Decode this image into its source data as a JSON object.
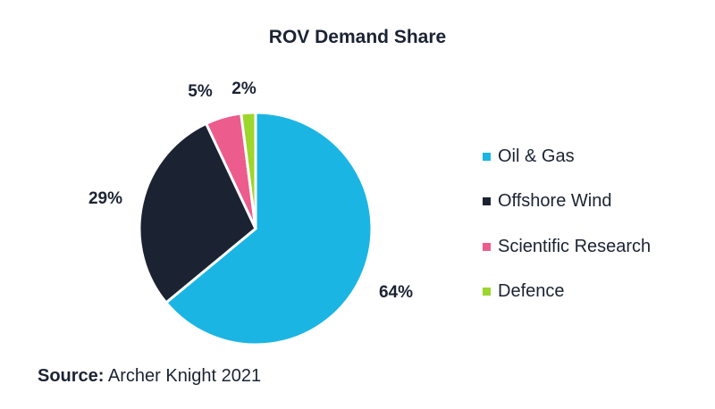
{
  "chart_data": {
    "type": "pie",
    "title": "ROV Demand Share",
    "categories": [
      "Oil & Gas",
      "Offshore Wind",
      "Scientific Research",
      "Defence"
    ],
    "values": [
      64,
      29,
      5,
      2
    ],
    "value_labels": [
      "64%",
      "29%",
      "5%",
      "2%"
    ],
    "colors": [
      "#1bb5e4",
      "#1b2333",
      "#ec5c8c",
      "#9dd62c"
    ],
    "legend": "right"
  },
  "source": {
    "label": "Source:",
    "text": "Archer Knight 2021"
  }
}
